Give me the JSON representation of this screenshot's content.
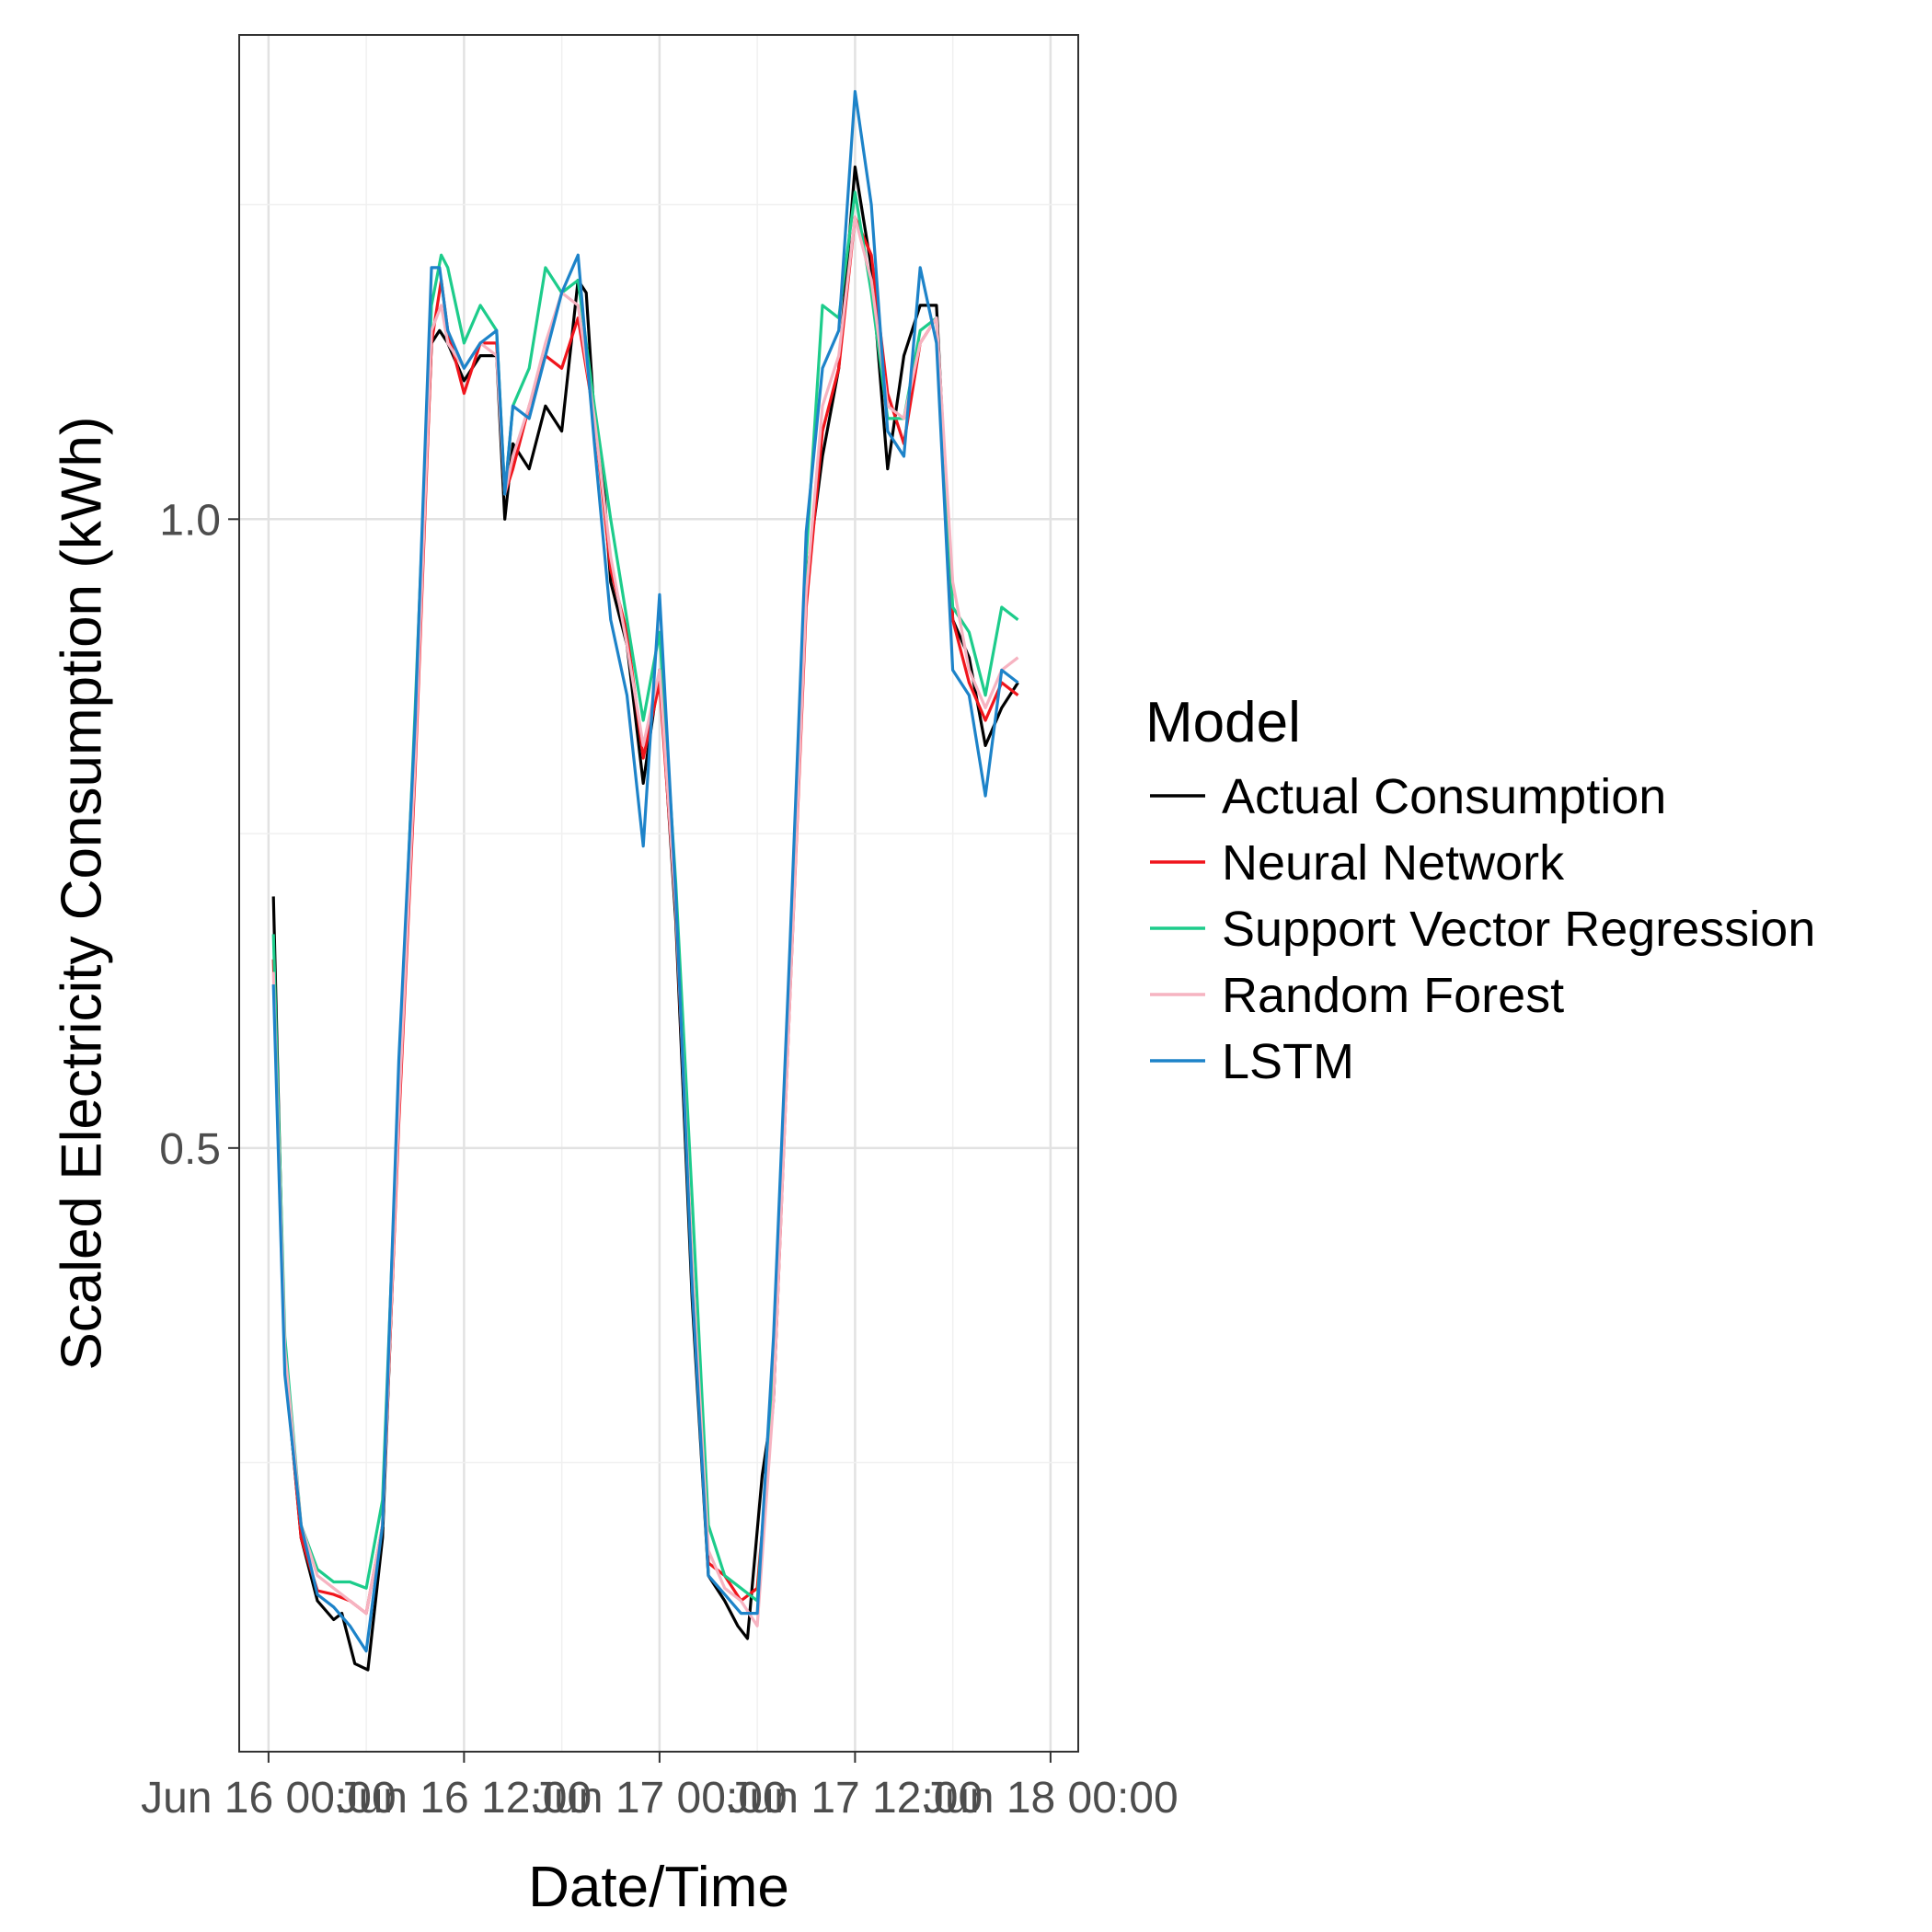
{
  "chart_data": {
    "type": "line",
    "xlabel": "Date/Time",
    "ylabel": "Scaled Electricity Consumption (kWh)",
    "x_ticks": [
      "Jun 16 00:00",
      "Jun 16 12:00",
      "Jun 17 00:00",
      "Jun 17 12:00",
      "Jun 18 00:00"
    ],
    "x_tick_hours": [
      0,
      12,
      24,
      36,
      48
    ],
    "xlim_hours": [
      -1.8,
      49.7
    ],
    "y_ticks": [
      "0.5",
      "1.0"
    ],
    "y_tick_values": [
      0.5,
      1.0
    ],
    "ylim": [
      0.02,
      1.385
    ],
    "grid": true,
    "legend_title": "Model",
    "legend_position": "right",
    "series": [
      {
        "name": "Actual Consumption",
        "color": "#000000",
        "points": [
          [
            0.3,
            0.7
          ],
          [
            1,
            0.33
          ],
          [
            2,
            0.19
          ],
          [
            3,
            0.14
          ],
          [
            4,
            0.125
          ],
          [
            4.5,
            0.13
          ],
          [
            5.3,
            0.09
          ],
          [
            6.1,
            0.085
          ],
          [
            7,
            0.19
          ],
          [
            8,
            0.53
          ],
          [
            9,
            0.82
          ],
          [
            10,
            1.14
          ],
          [
            10.5,
            1.15
          ],
          [
            11,
            1.14
          ],
          [
            12,
            1.11
          ],
          [
            13,
            1.13
          ],
          [
            14,
            1.13
          ],
          [
            14.5,
            1.0
          ],
          [
            15,
            1.06
          ],
          [
            16,
            1.04
          ],
          [
            17,
            1.09
          ],
          [
            18,
            1.07
          ],
          [
            19,
            1.19
          ],
          [
            19.5,
            1.18
          ],
          [
            20,
            1.08
          ],
          [
            20.5,
            1.04
          ],
          [
            21,
            0.95
          ],
          [
            22,
            0.9
          ],
          [
            23,
            0.79
          ],
          [
            24,
            0.88
          ],
          [
            25,
            0.68
          ],
          [
            26,
            0.38
          ],
          [
            27,
            0.16
          ],
          [
            28,
            0.14
          ],
          [
            28.8,
            0.12
          ],
          [
            29.4,
            0.11
          ],
          [
            30.3,
            0.24
          ],
          [
            31,
            0.3
          ],
          [
            32,
            0.63
          ],
          [
            33,
            0.95
          ],
          [
            34,
            1.05
          ],
          [
            35,
            1.12
          ],
          [
            36,
            1.28
          ],
          [
            37,
            1.2
          ],
          [
            38,
            1.04
          ],
          [
            39,
            1.13
          ],
          [
            40,
            1.17
          ],
          [
            41,
            1.17
          ],
          [
            42,
            0.92
          ],
          [
            43,
            0.89
          ],
          [
            44,
            0.82
          ],
          [
            45,
            0.85
          ],
          [
            46,
            0.87
          ]
        ]
      },
      {
        "name": "Neural Network",
        "color": "#f0151c",
        "points": [
          [
            0.3,
            0.65
          ],
          [
            1,
            0.33
          ],
          [
            2,
            0.19
          ],
          [
            3,
            0.148
          ],
          [
            4,
            0.145
          ],
          [
            5,
            0.14
          ],
          [
            6,
            0.13
          ],
          [
            7,
            0.2
          ],
          [
            8,
            0.52
          ],
          [
            9,
            0.8
          ],
          [
            10,
            1.14
          ],
          [
            10.6,
            1.19
          ],
          [
            11,
            1.15
          ],
          [
            12,
            1.1
          ],
          [
            13,
            1.14
          ],
          [
            14,
            1.14
          ],
          [
            14.5,
            1.02
          ],
          [
            15,
            1.04
          ],
          [
            16,
            1.09
          ],
          [
            17,
            1.13
          ],
          [
            18,
            1.12
          ],
          [
            19,
            1.16
          ],
          [
            20,
            1.08
          ],
          [
            21,
            0.96
          ],
          [
            22,
            0.91
          ],
          [
            23,
            0.81
          ],
          [
            24,
            0.87
          ],
          [
            25,
            0.69
          ],
          [
            26,
            0.4
          ],
          [
            27,
            0.17
          ],
          [
            28,
            0.16
          ],
          [
            29,
            0.14
          ],
          [
            30,
            0.15
          ],
          [
            31,
            0.3
          ],
          [
            32,
            0.62
          ],
          [
            33,
            0.93
          ],
          [
            34,
            1.07
          ],
          [
            35,
            1.12
          ],
          [
            36,
            1.24
          ],
          [
            37,
            1.21
          ],
          [
            38,
            1.1
          ],
          [
            39,
            1.06
          ],
          [
            40,
            1.14
          ],
          [
            41,
            1.16
          ],
          [
            42,
            0.92
          ],
          [
            43,
            0.87
          ],
          [
            44,
            0.84
          ],
          [
            45,
            0.87
          ],
          [
            46,
            0.86
          ]
        ]
      },
      {
        "name": "Support Vector Regression",
        "color": "#1dcc8b",
        "points": [
          [
            0.3,
            0.67
          ],
          [
            1,
            0.35
          ],
          [
            2,
            0.2
          ],
          [
            3,
            0.165
          ],
          [
            4,
            0.155
          ],
          [
            5,
            0.155
          ],
          [
            6,
            0.15
          ],
          [
            7,
            0.22
          ],
          [
            8,
            0.55
          ],
          [
            9,
            0.85
          ],
          [
            10,
            1.17
          ],
          [
            10.6,
            1.21
          ],
          [
            11,
            1.2
          ],
          [
            12,
            1.14
          ],
          [
            13,
            1.17
          ],
          [
            14,
            1.15
          ],
          [
            14.5,
            1.02
          ],
          [
            15,
            1.09
          ],
          [
            16,
            1.12
          ],
          [
            17,
            1.2
          ],
          [
            18,
            1.18
          ],
          [
            19,
            1.19
          ],
          [
            20,
            1.09
          ],
          [
            21,
            1.0
          ],
          [
            22,
            0.92
          ],
          [
            23,
            0.84
          ],
          [
            24,
            0.91
          ],
          [
            25,
            0.71
          ],
          [
            26,
            0.46
          ],
          [
            27,
            0.2
          ],
          [
            28,
            0.16
          ],
          [
            29,
            0.15
          ],
          [
            30,
            0.14
          ],
          [
            31,
            0.32
          ],
          [
            32,
            0.65
          ],
          [
            33,
            0.97
          ],
          [
            34,
            1.17
          ],
          [
            35,
            1.16
          ],
          [
            36,
            1.26
          ],
          [
            37,
            1.18
          ],
          [
            38,
            1.08
          ],
          [
            39,
            1.08
          ],
          [
            40,
            1.15
          ],
          [
            41,
            1.16
          ],
          [
            42,
            0.93
          ],
          [
            43,
            0.91
          ],
          [
            44,
            0.86
          ],
          [
            45,
            0.93
          ],
          [
            46,
            0.92
          ]
        ]
      },
      {
        "name": "Random Forest",
        "color": "#f6b3c1",
        "points": [
          [
            0.3,
            0.64
          ],
          [
            1,
            0.34
          ],
          [
            2,
            0.2
          ],
          [
            3,
            0.16
          ],
          [
            4,
            0.15
          ],
          [
            5,
            0.14
          ],
          [
            6,
            0.13
          ],
          [
            7,
            0.2
          ],
          [
            8,
            0.53
          ],
          [
            9,
            0.81
          ],
          [
            10,
            1.15
          ],
          [
            10.6,
            1.17
          ],
          [
            11,
            1.14
          ],
          [
            12,
            1.12
          ],
          [
            13,
            1.14
          ],
          [
            14,
            1.13
          ],
          [
            14.5,
            1.02
          ],
          [
            15,
            1.05
          ],
          [
            16,
            1.09
          ],
          [
            17,
            1.14
          ],
          [
            18,
            1.18
          ],
          [
            19,
            1.17
          ],
          [
            20,
            1.08
          ],
          [
            21,
            0.97
          ],
          [
            22,
            0.9
          ],
          [
            23,
            0.82
          ],
          [
            24,
            0.88
          ],
          [
            25,
            0.69
          ],
          [
            26,
            0.41
          ],
          [
            27,
            0.18
          ],
          [
            28,
            0.15
          ],
          [
            29,
            0.14
          ],
          [
            30,
            0.12
          ],
          [
            31,
            0.3
          ],
          [
            32,
            0.62
          ],
          [
            33,
            0.94
          ],
          [
            34,
            1.09
          ],
          [
            35,
            1.13
          ],
          [
            36,
            1.24
          ],
          [
            37,
            1.19
          ],
          [
            38,
            1.09
          ],
          [
            39,
            1.08
          ],
          [
            40,
            1.14
          ],
          [
            41,
            1.16
          ],
          [
            42,
            0.95
          ],
          [
            43,
            0.88
          ],
          [
            44,
            0.85
          ],
          [
            45,
            0.88
          ],
          [
            46,
            0.89
          ]
        ]
      },
      {
        "name": "LSTM",
        "color": "#1d83c9",
        "points": [
          [
            0.3,
            0.63
          ],
          [
            1,
            0.32
          ],
          [
            2,
            0.2
          ],
          [
            3,
            0.145
          ],
          [
            4,
            0.135
          ],
          [
            5,
            0.12
          ],
          [
            6,
            0.1
          ],
          [
            7,
            0.2
          ],
          [
            8,
            0.57
          ],
          [
            9,
            0.84
          ],
          [
            10,
            1.2
          ],
          [
            10.5,
            1.2
          ],
          [
            11,
            1.15
          ],
          [
            12,
            1.12
          ],
          [
            13,
            1.14
          ],
          [
            14,
            1.15
          ],
          [
            14.5,
            1.02
          ],
          [
            15,
            1.09
          ],
          [
            16,
            1.08
          ],
          [
            17,
            1.13
          ],
          [
            18,
            1.18
          ],
          [
            19,
            1.21
          ],
          [
            20,
            1.06
          ],
          [
            21,
            0.92
          ],
          [
            22,
            0.86
          ],
          [
            23,
            0.74
          ],
          [
            24,
            0.94
          ],
          [
            25,
            0.7
          ],
          [
            26,
            0.39
          ],
          [
            27,
            0.16
          ],
          [
            28,
            0.145
          ],
          [
            29,
            0.13
          ],
          [
            30,
            0.13
          ],
          [
            31,
            0.35
          ],
          [
            32,
            0.66
          ],
          [
            33,
            0.99
          ],
          [
            34,
            1.12
          ],
          [
            35,
            1.15
          ],
          [
            36,
            1.34
          ],
          [
            37,
            1.25
          ],
          [
            38,
            1.07
          ],
          [
            39,
            1.05
          ],
          [
            40,
            1.2
          ],
          [
            41,
            1.14
          ],
          [
            42,
            0.88
          ],
          [
            43,
            0.86
          ],
          [
            44,
            0.78
          ],
          [
            45,
            0.88
          ],
          [
            46,
            0.87
          ]
        ]
      }
    ]
  }
}
